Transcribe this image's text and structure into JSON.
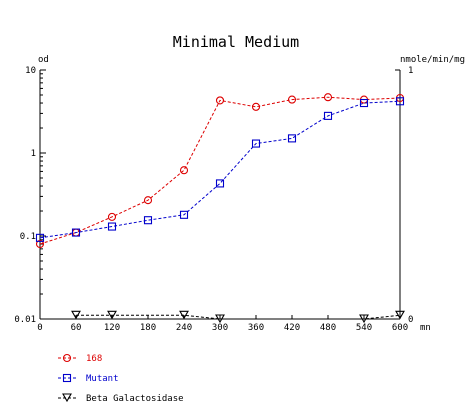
{
  "chart_data": {
    "type": "line",
    "title": "Minimal Medium",
    "xlabel": "mn",
    "ylabel_left": "od",
    "ylabel_right": "nmole/min/mg",
    "x": [
      0,
      60,
      120,
      180,
      240,
      300,
      360,
      420,
      480,
      540,
      600
    ],
    "xlim": [
      0,
      600
    ],
    "x_ticks": [
      "0",
      "60",
      "120",
      "180",
      "240",
      "300",
      "360",
      "420",
      "480",
      "540",
      "600"
    ],
    "y_left_scale": "log",
    "y_left_lim": [
      0.01,
      10
    ],
    "y_left_ticks": [
      "10",
      "1",
      "0.1",
      "0.01"
    ],
    "y_right_lim": [
      0,
      1
    ],
    "y_right_ticks": [
      "1",
      "0"
    ],
    "grid": false,
    "legend_position": "bottom-left",
    "series": [
      {
        "name": "168",
        "color": "#dd0000",
        "marker": "circle",
        "axis": "left",
        "points": [
          [
            0,
            0.08
          ],
          [
            60,
            0.11
          ],
          [
            120,
            0.17
          ],
          [
            180,
            0.27
          ],
          [
            240,
            0.62
          ],
          [
            300,
            4.3
          ],
          [
            360,
            3.6
          ],
          [
            420,
            4.4
          ],
          [
            480,
            4.7
          ],
          [
            540,
            4.4
          ],
          [
            600,
            4.6
          ]
        ]
      },
      {
        "name": "Mutant",
        "color": "#0000cc",
        "marker": "square",
        "axis": "left",
        "points": [
          [
            0,
            0.095
          ],
          [
            60,
            0.11
          ],
          [
            120,
            0.13
          ],
          [
            180,
            0.155
          ],
          [
            240,
            0.18
          ],
          [
            300,
            0.43
          ],
          [
            360,
            1.3
          ],
          [
            420,
            1.5
          ],
          [
            480,
            2.8
          ],
          [
            540,
            4.0
          ],
          [
            600,
            4.2
          ]
        ]
      },
      {
        "name": "Beta Galactosidase",
        "color": "#000000",
        "marker": "triangle-down",
        "axis": "right",
        "points": [
          [
            60,
            0.015
          ],
          [
            120,
            0.015
          ],
          [
            240,
            0.015
          ],
          [
            300,
            0.0
          ],
          [
            540,
            0.0
          ],
          [
            600,
            0.015
          ]
        ]
      }
    ]
  }
}
